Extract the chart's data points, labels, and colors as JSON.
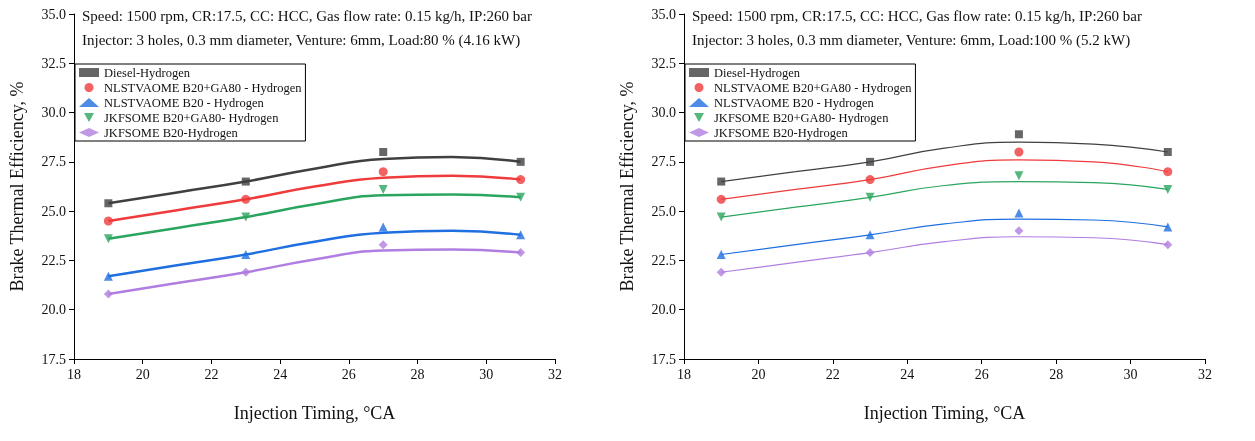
{
  "chart_data": [
    {
      "type": "scatter",
      "xlabel": "Injection Timing, °CA",
      "ylabel": "Brake Thermal Efficiency, %",
      "annotations": [
        "Speed: 1500 rpm, CR:17.5, CC: HCC, Gas flow rate: 0.15 kg/h, IP:260 bar",
        "Injector: 3 holes, 0.3 mm diameter, Venture: 6mm, Load:80 % (4.16 kW)"
      ],
      "x": [
        19,
        23,
        27,
        31
      ],
      "xlim": [
        18,
        32
      ],
      "xticks": [
        18,
        20,
        22,
        24,
        26,
        28,
        30,
        32
      ],
      "ylim": [
        17.5,
        35
      ],
      "yticks": [
        17.5,
        {
          "value": 20,
          "label": "20.0"
        },
        22.5,
        {
          "value": 25,
          "label": "25.0"
        },
        27.5,
        {
          "value": 30,
          "label": "30.0"
        },
        32.5,
        {
          "value": 35,
          "label": "35.0"
        }
      ],
      "grid": false,
      "legend": "top left",
      "series": [
        {
          "name": "Diesel-Hydrogen",
          "color": "#404040",
          "marker": "square",
          "values": [
            25.4,
            26.5,
            28.0,
            27.5
          ]
        },
        {
          "name": "NLSTVAOME B20+GA80 - Hydrogen",
          "color": "#ef3b3b",
          "marker": "circle",
          "values": [
            24.5,
            25.6,
            27.0,
            26.6
          ]
        },
        {
          "name": "NLSTVAOME B20 - Hydrogen",
          "color": "#1f6fe0",
          "marker": "triangle",
          "values": [
            21.7,
            22.8,
            24.2,
            23.8
          ]
        },
        {
          "name": "JKFSOME B20+GA80- Hydrogen",
          "color": "#2aa55e",
          "marker": "triangle-down",
          "values": [
            23.6,
            24.7,
            26.1,
            25.7
          ]
        },
        {
          "name": "JKFSOME B20-Hydrogen",
          "color": "#b07ee0",
          "marker": "diamond",
          "values": [
            20.8,
            21.9,
            23.3,
            22.9
          ]
        },
        {
          "type": "line",
          "color": "#404040",
          "marker": "none",
          "x": [
            19,
            21,
            23,
            25,
            27,
            29,
            31
          ],
          "values": [
            25.4,
            25.95,
            26.5,
            27.15,
            27.65,
            27.75,
            27.5
          ]
        },
        {
          "type": "line",
          "color": "#ef3b3b",
          "marker": "none",
          "x": [
            19,
            21,
            23,
            25,
            27,
            29,
            31
          ],
          "values": [
            24.5,
            25.05,
            25.6,
            26.25,
            26.7,
            26.8,
            26.6
          ]
        },
        {
          "type": "line",
          "color": "#1f6fe0",
          "marker": "none",
          "x": [
            19,
            21,
            23,
            25,
            27,
            29,
            31
          ],
          "values": [
            21.7,
            22.25,
            22.8,
            23.45,
            23.9,
            24.0,
            23.8
          ]
        },
        {
          "type": "line",
          "color": "#2aa55e",
          "marker": "none",
          "x": [
            19,
            21,
            23,
            25,
            27,
            29,
            31
          ],
          "values": [
            23.6,
            24.15,
            24.7,
            25.35,
            25.8,
            25.85,
            25.7
          ]
        },
        {
          "type": "line",
          "color": "#b07ee0",
          "marker": "none",
          "x": [
            19,
            21,
            23,
            25,
            27,
            29,
            31
          ],
          "values": [
            20.8,
            21.35,
            21.9,
            22.55,
            23.0,
            23.05,
            22.9
          ]
        }
      ]
    },
    {
      "type": "scatter",
      "xlabel": "Injection Timing, °CA",
      "ylabel": "Brake Thermal Efficiency, %",
      "annotations": [
        "Speed: 1500 rpm, CR:17.5, CC: HCC, Gas flow rate: 0.15 kg/h, IP:260 bar",
        "Injector: 3 holes, 0.3 mm diameter, Venture: 6mm, Load:100 % (5.2 kW)"
      ],
      "x": [
        19,
        23,
        27,
        31
      ],
      "xlim": [
        18,
        32
      ],
      "xticks": [
        18,
        20,
        22,
        24,
        26,
        28,
        30,
        32
      ],
      "ylim": [
        17.5,
        35
      ],
      "yticks": [
        17.5,
        {
          "value": 20,
          "label": "20.0"
        },
        22.5,
        {
          "value": 25,
          "label": "25.0"
        },
        27.5,
        {
          "value": 30,
          "label": "30.0"
        },
        32.5,
        {
          "value": 35,
          "label": "35.0"
        }
      ],
      "grid": false,
      "legend": "top left",
      "series": [
        {
          "name": "Diesel-Hydrogen",
          "color": "#404040",
          "marker": "square",
          "values": [
            26.5,
            27.5,
            28.9,
            28.0
          ]
        },
        {
          "name": "NLSTVAOME B20+GA80 - Hydrogen",
          "color": "#ef3b3b",
          "marker": "circle",
          "values": [
            25.6,
            26.6,
            28.0,
            27.0
          ]
        },
        {
          "name": "NLSTVAOME B20 - Hydrogen",
          "color": "#1f6fe0",
          "marker": "triangle",
          "values": [
            22.8,
            23.8,
            24.9,
            24.2
          ]
        },
        {
          "name": "JKFSOME B20+GA80- Hydrogen",
          "color": "#2aa55e",
          "marker": "triangle-down",
          "values": [
            24.7,
            25.7,
            26.8,
            26.1
          ]
        },
        {
          "name": "JKFSOME B20-Hydrogen",
          "color": "#b07ee0",
          "marker": "diamond",
          "values": [
            21.9,
            22.9,
            24.0,
            23.3
          ]
        },
        {
          "type": "line",
          "color": "#404040",
          "marker": "none",
          "x": [
            19,
            21,
            23,
            25,
            27,
            29,
            31
          ],
          "values": [
            26.5,
            27.0,
            27.5,
            28.2,
            28.5,
            28.4,
            28.0
          ]
        },
        {
          "type": "line",
          "color": "#ef3b3b",
          "marker": "none",
          "x": [
            19,
            21,
            23,
            25,
            27,
            29,
            31
          ],
          "values": [
            25.6,
            26.1,
            26.6,
            27.3,
            27.6,
            27.5,
            27.0
          ]
        },
        {
          "type": "line",
          "color": "#1f6fe0",
          "marker": "none",
          "x": [
            19,
            21,
            23,
            25,
            27,
            29,
            31
          ],
          "values": [
            22.8,
            23.3,
            23.8,
            24.35,
            24.6,
            24.55,
            24.2
          ]
        },
        {
          "type": "line",
          "color": "#2aa55e",
          "marker": "none",
          "x": [
            19,
            21,
            23,
            25,
            27,
            29,
            31
          ],
          "values": [
            24.7,
            25.2,
            25.7,
            26.3,
            26.5,
            26.45,
            26.1
          ]
        },
        {
          "type": "line",
          "color": "#b07ee0",
          "marker": "none",
          "x": [
            19,
            21,
            23,
            25,
            27,
            29,
            31
          ],
          "values": [
            21.9,
            22.4,
            22.9,
            23.45,
            23.7,
            23.65,
            23.3
          ]
        }
      ]
    }
  ]
}
